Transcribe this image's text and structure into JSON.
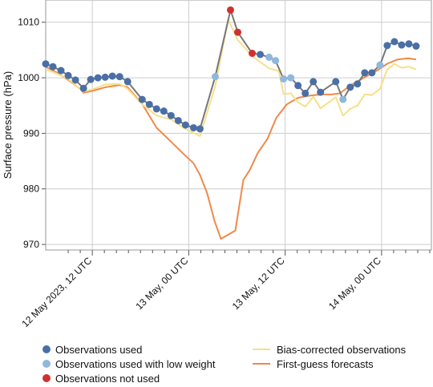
{
  "chart_data": {
    "type": "line",
    "ylabel": "Surface pressure (hPa)",
    "ylim": [
      969,
      1014
    ],
    "y_ticks": [
      970,
      980,
      990,
      1000,
      1010
    ],
    "x_ticks": [
      {
        "t": 0,
        "label": "12 May 2023, 12 UTC"
      },
      {
        "t": 12,
        "label": "13 May, 00 UTC"
      },
      {
        "t": 24,
        "label": "13 May, 12 UTC"
      },
      {
        "t": 36,
        "label": "14 May, 00 UTC"
      }
    ],
    "x_unit": "hours from 12 May 2023, 12 UTC",
    "xlim": [
      -5.8,
      42.2
    ],
    "grid": true,
    "colors": {
      "observations_used": "#4a6fa5",
      "low_weight": "#8fb8dc",
      "not_used": "#d03030",
      "bias_corrected": "#f5e08a",
      "first_guess": "#f0894a",
      "obs_line": "#777777",
      "grid": "#cccccc"
    },
    "observations": [
      {
        "t": -5.8,
        "v": 1002.5,
        "s": "used"
      },
      {
        "t": -4.9,
        "v": 1002.0,
        "s": "used"
      },
      {
        "t": -3.9,
        "v": 1001.3,
        "s": "used"
      },
      {
        "t": -3.0,
        "v": 1000.4,
        "s": "used"
      },
      {
        "t": -2.1,
        "v": 999.6,
        "s": "used"
      },
      {
        "t": -1.1,
        "v": 998.1,
        "s": "used"
      },
      {
        "t": -0.2,
        "v": 999.7,
        "s": "used"
      },
      {
        "t": 0.7,
        "v": 1000.0,
        "s": "used"
      },
      {
        "t": 1.6,
        "v": 1000.1,
        "s": "used"
      },
      {
        "t": 2.5,
        "v": 1000.3,
        "s": "used"
      },
      {
        "t": 3.4,
        "v": 1000.2,
        "s": "used"
      },
      {
        "t": 4.4,
        "v": 999.3,
        "s": "used"
      },
      {
        "t": 6.2,
        "v": 996.1,
        "s": "used"
      },
      {
        "t": 7.1,
        "v": 995.2,
        "s": "used"
      },
      {
        "t": 8.0,
        "v": 994.4,
        "s": "used"
      },
      {
        "t": 8.9,
        "v": 994.0,
        "s": "used"
      },
      {
        "t": 9.8,
        "v": 993.2,
        "s": "used"
      },
      {
        "t": 10.7,
        "v": 992.3,
        "s": "used"
      },
      {
        "t": 11.6,
        "v": 991.5,
        "s": "used"
      },
      {
        "t": 12.6,
        "v": 991.0,
        "s": "used"
      },
      {
        "t": 13.4,
        "v": 990.8,
        "s": "used"
      },
      {
        "t": 15.3,
        "v": 1000.2,
        "s": "low"
      },
      {
        "t": 17.2,
        "v": 1012.2,
        "s": "not_used"
      },
      {
        "t": 18.1,
        "v": 1008.2,
        "s": "not_used"
      },
      {
        "t": 19.9,
        "v": 1004.4,
        "s": "not_used"
      },
      {
        "t": 20.9,
        "v": 1004.2,
        "s": "used"
      },
      {
        "t": 22.0,
        "v": 1003.7,
        "s": "low"
      },
      {
        "t": 22.8,
        "v": 1003.1,
        "s": "low"
      },
      {
        "t": 23.8,
        "v": 999.8,
        "s": "low"
      },
      {
        "t": 24.7,
        "v": 1000.0,
        "s": "low"
      },
      {
        "t": 25.6,
        "v": 998.6,
        "s": "used"
      },
      {
        "t": 26.5,
        "v": 997.2,
        "s": "used"
      },
      {
        "t": 27.5,
        "v": 999.3,
        "s": "used"
      },
      {
        "t": 28.4,
        "v": 997.4,
        "s": "used"
      },
      {
        "t": 30.3,
        "v": 999.3,
        "s": "used"
      },
      {
        "t": 31.2,
        "v": 996.1,
        "s": "low"
      },
      {
        "t": 32.1,
        "v": 998.3,
        "s": "used"
      },
      {
        "t": 33.0,
        "v": 998.9,
        "s": "used"
      },
      {
        "t": 33.9,
        "v": 1000.9,
        "s": "used"
      },
      {
        "t": 34.8,
        "v": 1000.9,
        "s": "used"
      },
      {
        "t": 35.8,
        "v": 1002.3,
        "s": "low"
      },
      {
        "t": 36.7,
        "v": 1005.8,
        "s": "used"
      },
      {
        "t": 37.6,
        "v": 1006.5,
        "s": "used"
      },
      {
        "t": 38.5,
        "v": 1005.9,
        "s": "used"
      },
      {
        "t": 39.4,
        "v": 1006.1,
        "s": "used"
      },
      {
        "t": 40.3,
        "v": 1005.7,
        "s": "used"
      }
    ],
    "bias_corrected": [
      [
        -5.8,
        1001.5
      ],
      [
        -4.5,
        1000.8
      ],
      [
        -3.0,
        999.8
      ],
      [
        -1.1,
        997.5
      ],
      [
        0.2,
        998.0
      ],
      [
        1.6,
        998.8
      ],
      [
        3.4,
        998.9
      ],
      [
        4.4,
        998.0
      ],
      [
        6.2,
        995.2
      ],
      [
        8.0,
        993.2
      ],
      [
        9.8,
        992.5
      ],
      [
        11.6,
        990.8
      ],
      [
        13.4,
        989.5
      ],
      [
        15.3,
        998.5
      ],
      [
        16.9,
        1010.5
      ],
      [
        18.1,
        1006.8
      ],
      [
        19.9,
        1003.9
      ],
      [
        22.0,
        1001.7
      ],
      [
        23.2,
        1001.2
      ],
      [
        23.8,
        997.1
      ],
      [
        24.7,
        997.2
      ],
      [
        25.6,
        995.6
      ],
      [
        26.5,
        994.8
      ],
      [
        27.5,
        996.6
      ],
      [
        28.4,
        994.5
      ],
      [
        30.3,
        996.5
      ],
      [
        31.2,
        993.2
      ],
      [
        32.1,
        994.4
      ],
      [
        33.0,
        995.0
      ],
      [
        33.9,
        997.0
      ],
      [
        34.8,
        996.9
      ],
      [
        35.8,
        998.0
      ],
      [
        36.7,
        1001.5
      ],
      [
        37.6,
        1002.5
      ],
      [
        38.5,
        1001.8
      ],
      [
        39.4,
        1002.0
      ],
      [
        40.3,
        1001.5
      ]
    ],
    "first_guess": [
      [
        -5.8,
        1002.0
      ],
      [
        -4.5,
        1001.0
      ],
      [
        -3.0,
        999.6
      ],
      [
        -1.5,
        998.0
      ],
      [
        -1.1,
        997.3
      ],
      [
        0.2,
        997.7
      ],
      [
        1.6,
        998.3
      ],
      [
        3.4,
        998.7
      ],
      [
        4.4,
        998.3
      ],
      [
        6.2,
        995.3
      ],
      [
        8.0,
        991.0
      ],
      [
        9.8,
        988.5
      ],
      [
        11.2,
        986.5
      ],
      [
        12.6,
        984.6
      ],
      [
        13.4,
        982.5
      ],
      [
        14.3,
        979.2
      ],
      [
        15.2,
        974.3
      ],
      [
        16.0,
        971.0
      ],
      [
        17.8,
        972.5
      ],
      [
        18.8,
        981.6
      ],
      [
        19.6,
        983.4
      ],
      [
        20.6,
        986.5
      ],
      [
        21.8,
        989.0
      ],
      [
        22.9,
        992.8
      ],
      [
        24.2,
        995.2
      ],
      [
        25.6,
        996.4
      ],
      [
        27.1,
        996.8
      ],
      [
        28.6,
        997.0
      ],
      [
        29.8,
        997.0
      ],
      [
        30.8,
        997.2
      ],
      [
        32.1,
        998.6
      ],
      [
        33.9,
        1000.1
      ],
      [
        35.4,
        1001.3
      ],
      [
        36.8,
        1002.6
      ],
      [
        38.0,
        1003.3
      ],
      [
        39.3,
        1003.5
      ],
      [
        40.3,
        1003.3
      ]
    ],
    "legend": {
      "obs_used": "Observations used",
      "obs_low_weight": "Observations used with low weight",
      "obs_not_used": "Observations not used",
      "bias_corrected": "Bias-corrected observations",
      "first_guess": "First-guess forecasts"
    }
  }
}
